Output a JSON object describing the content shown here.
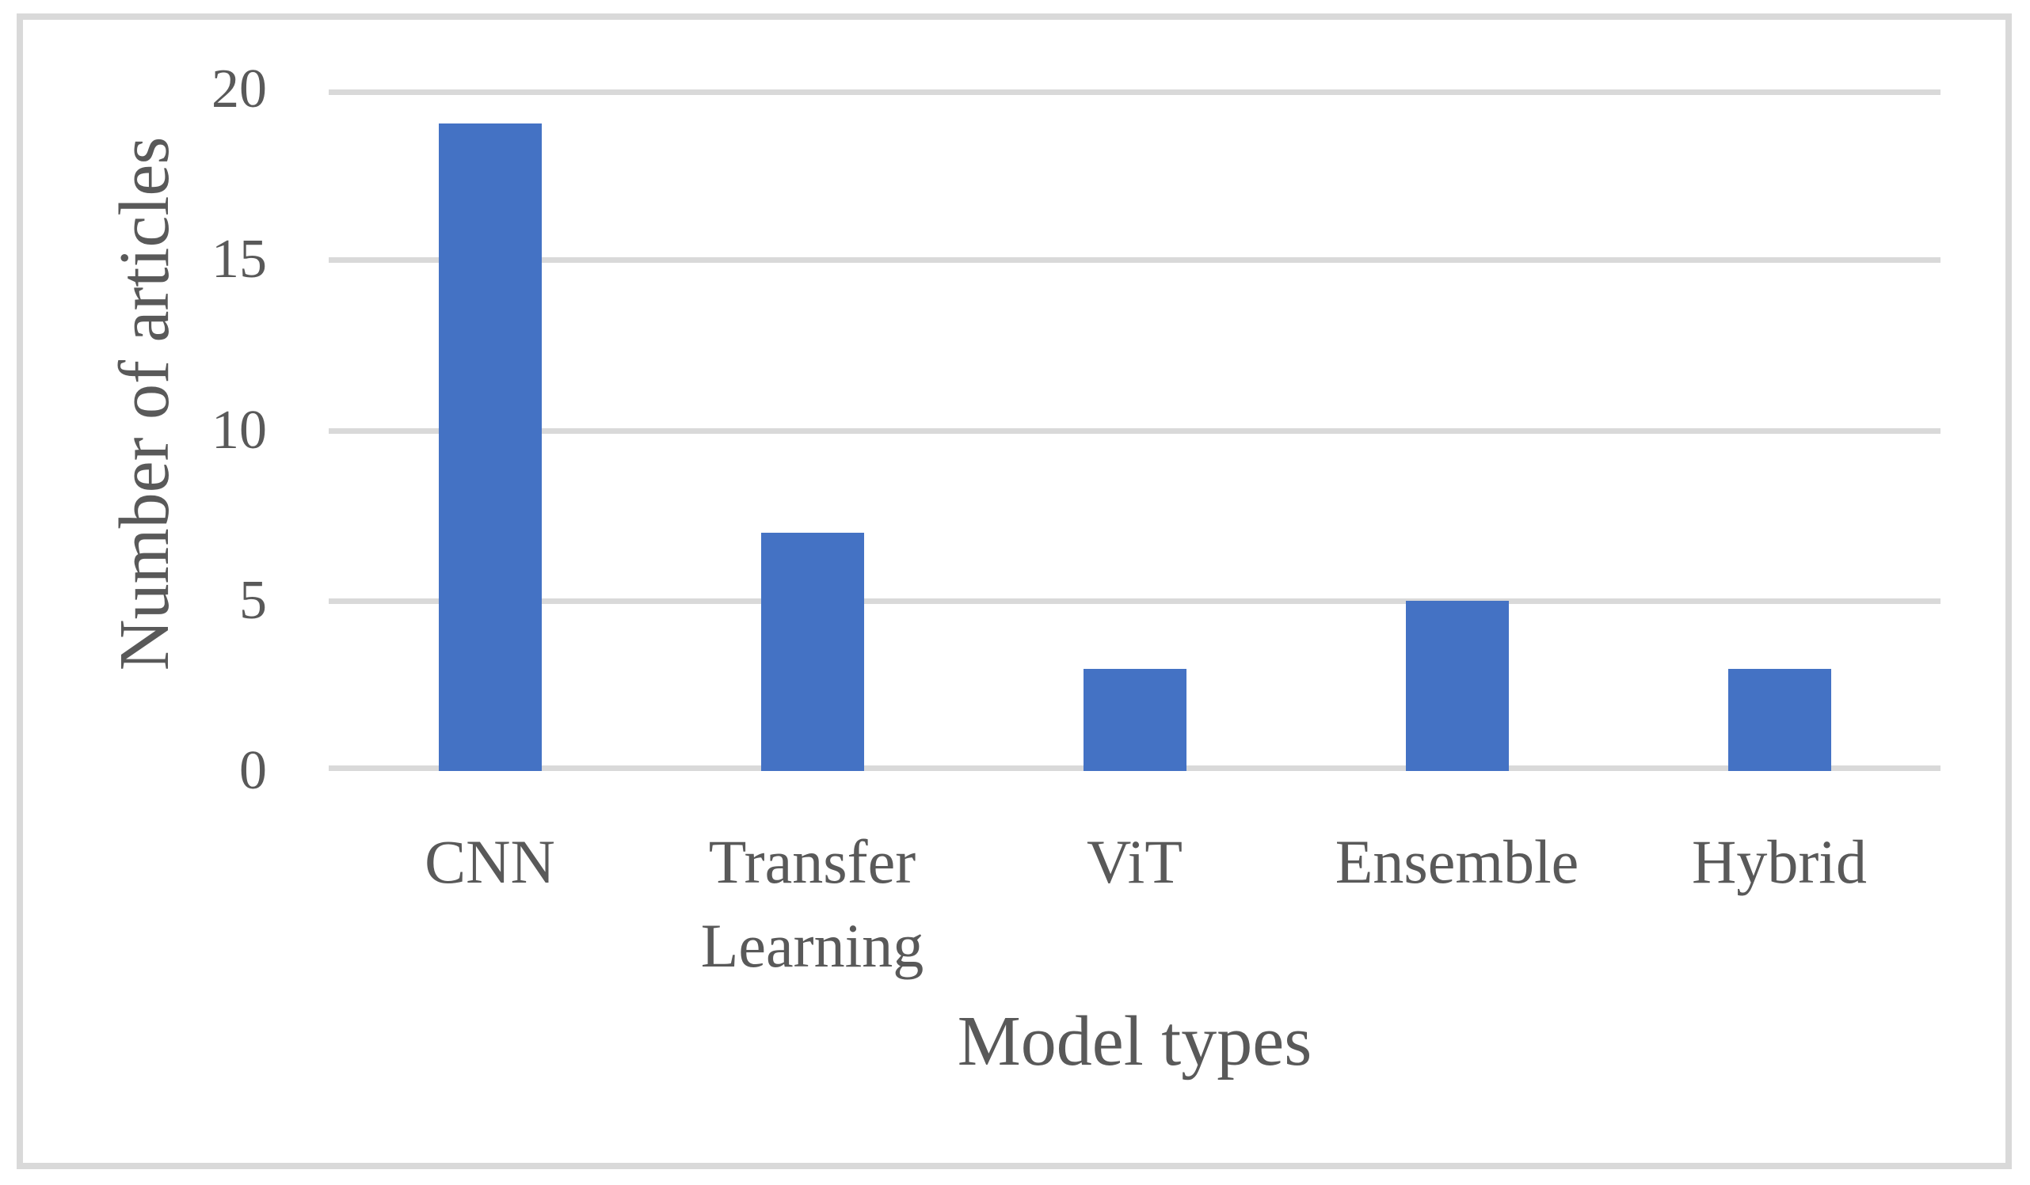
{
  "figure": {
    "background_color": "#ffffff",
    "border_color": "#D9D9D9",
    "text_color": "#595959"
  },
  "chart_data": {
    "type": "bar",
    "title": "",
    "categories": [
      "CNN",
      "Transfer Learning",
      "ViT",
      "Ensemble",
      "Hybrid"
    ],
    "values": [
      19,
      7,
      3,
      5,
      3
    ],
    "xlabel": "Model types",
    "ylabel": "Number of articles",
    "ylim": [
      0,
      20
    ],
    "yticks": [
      0,
      5,
      10,
      15,
      20
    ],
    "grid": true,
    "legend_position": "none",
    "bar_color": "#4472C4",
    "gridline_color": "#D9D9D9"
  }
}
